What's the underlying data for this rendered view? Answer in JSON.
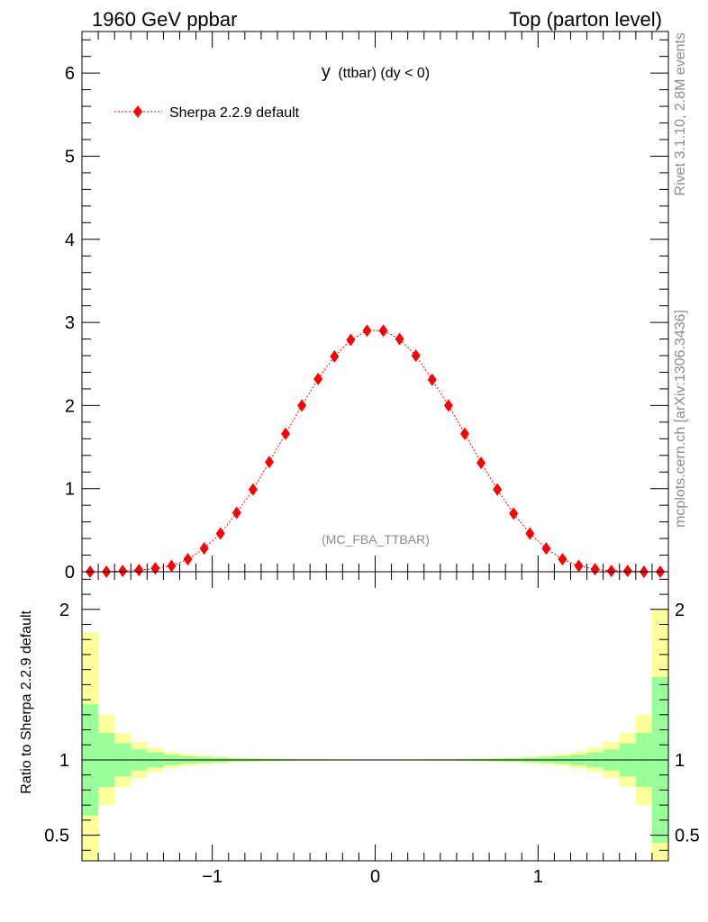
{
  "header": {
    "left": "1960 GeV ppbar",
    "right": "Top (parton level)"
  },
  "side": {
    "rivet": "Rivet 3.1.10,  2.8M events",
    "mcplots": "mcplots.cern.ch [arXiv:1306.3436]"
  },
  "chart_data": [
    {
      "type": "line",
      "title": "y (ttbar) (dy < 0)",
      "title_main": "y",
      "title_sub": "(ttbar) (dy < 0)",
      "watermark": "(MC_FBA_TTBAR)",
      "xlim": [
        -1.8,
        1.8
      ],
      "ylim": [
        0,
        6.5
      ],
      "x_ticks": [
        -1,
        0,
        1
      ],
      "x_tick_labels": [
        "−1",
        "0",
        "1"
      ],
      "y_ticks": [
        0,
        1,
        2,
        3,
        4,
        5,
        6
      ],
      "y_tick_labels": [
        "0",
        "1",
        "2",
        "3",
        "4",
        "5",
        "6"
      ],
      "legend_position": "top-left",
      "series": [
        {
          "name": "Sherpa 2.2.9 default",
          "color": "#ff0000",
          "marker": "diamond",
          "line": "dotted",
          "x": [
            -1.75,
            -1.65,
            -1.55,
            -1.45,
            -1.35,
            -1.25,
            -1.15,
            -1.05,
            -0.95,
            -0.85,
            -0.75,
            -0.65,
            -0.55,
            -0.45,
            -0.35,
            -0.25,
            -0.15,
            -0.05,
            0.05,
            0.15,
            0.25,
            0.35,
            0.45,
            0.55,
            0.65,
            0.75,
            0.85,
            0.95,
            1.05,
            1.15,
            1.25,
            1.35,
            1.45,
            1.55,
            1.65,
            1.75
          ],
          "y": [
            0.0,
            0.0,
            0.01,
            0.02,
            0.04,
            0.07,
            0.15,
            0.28,
            0.46,
            0.71,
            0.99,
            1.32,
            1.66,
            2.0,
            2.32,
            2.59,
            2.79,
            2.9,
            2.9,
            2.8,
            2.6,
            2.31,
            2.0,
            1.66,
            1.31,
            0.99,
            0.7,
            0.46,
            0.28,
            0.15,
            0.07,
            0.03,
            0.01,
            0.01,
            0.0,
            0.0
          ]
        }
      ]
    },
    {
      "type": "bar",
      "ylabel": "Ratio to Sherpa 2.2.9 default",
      "xlim": [
        -1.8,
        1.8
      ],
      "ylim": [
        0.33,
        2.25
      ],
      "x_ticks": [
        -1,
        0,
        1
      ],
      "x_tick_labels": [
        "−1",
        "0",
        "1"
      ],
      "y_ticks": [
        0.5,
        1,
        2
      ],
      "y_tick_labels": [
        "0.5",
        "1",
        "2"
      ],
      "reference_line": 1,
      "bin_edges": [
        -1.8,
        -1.7,
        -1.6,
        -1.5,
        -1.4,
        -1.3,
        -1.2,
        -1.1,
        -1.0,
        -0.9,
        -0.8,
        -0.7,
        -0.6,
        -0.5,
        -0.4,
        -0.3,
        -0.2,
        -0.1,
        0.0,
        0.1,
        0.2,
        0.3,
        0.4,
        0.5,
        0.6,
        0.7,
        0.8,
        0.9,
        1.0,
        1.1,
        1.2,
        1.3,
        1.4,
        1.5,
        1.6,
        1.7,
        1.8
      ],
      "bands": [
        {
          "name": "stat",
          "color": "#99ff99",
          "half_width": [
            0.37,
            0.18,
            0.11,
            0.07,
            0.05,
            0.035,
            0.025,
            0.02,
            0.015,
            0.01,
            0.008,
            0.006,
            0.005,
            0.004,
            0.004,
            0.003,
            0.003,
            0.003,
            0.003,
            0.003,
            0.003,
            0.004,
            0.004,
            0.005,
            0.006,
            0.008,
            0.01,
            0.015,
            0.02,
            0.025,
            0.035,
            0.05,
            0.07,
            0.11,
            0.18,
            0.55
          ]
        },
        {
          "name": "total",
          "color": "#ffff99",
          "half_width": [
            0.85,
            0.3,
            0.18,
            0.12,
            0.08,
            0.055,
            0.04,
            0.03,
            0.022,
            0.016,
            0.012,
            0.009,
            0.007,
            0.006,
            0.005,
            0.005,
            0.004,
            0.004,
            0.004,
            0.004,
            0.005,
            0.005,
            0.006,
            0.007,
            0.009,
            0.012,
            0.016,
            0.022,
            0.03,
            0.04,
            0.055,
            0.08,
            0.12,
            0.18,
            0.3,
            1.0
          ]
        }
      ]
    }
  ]
}
